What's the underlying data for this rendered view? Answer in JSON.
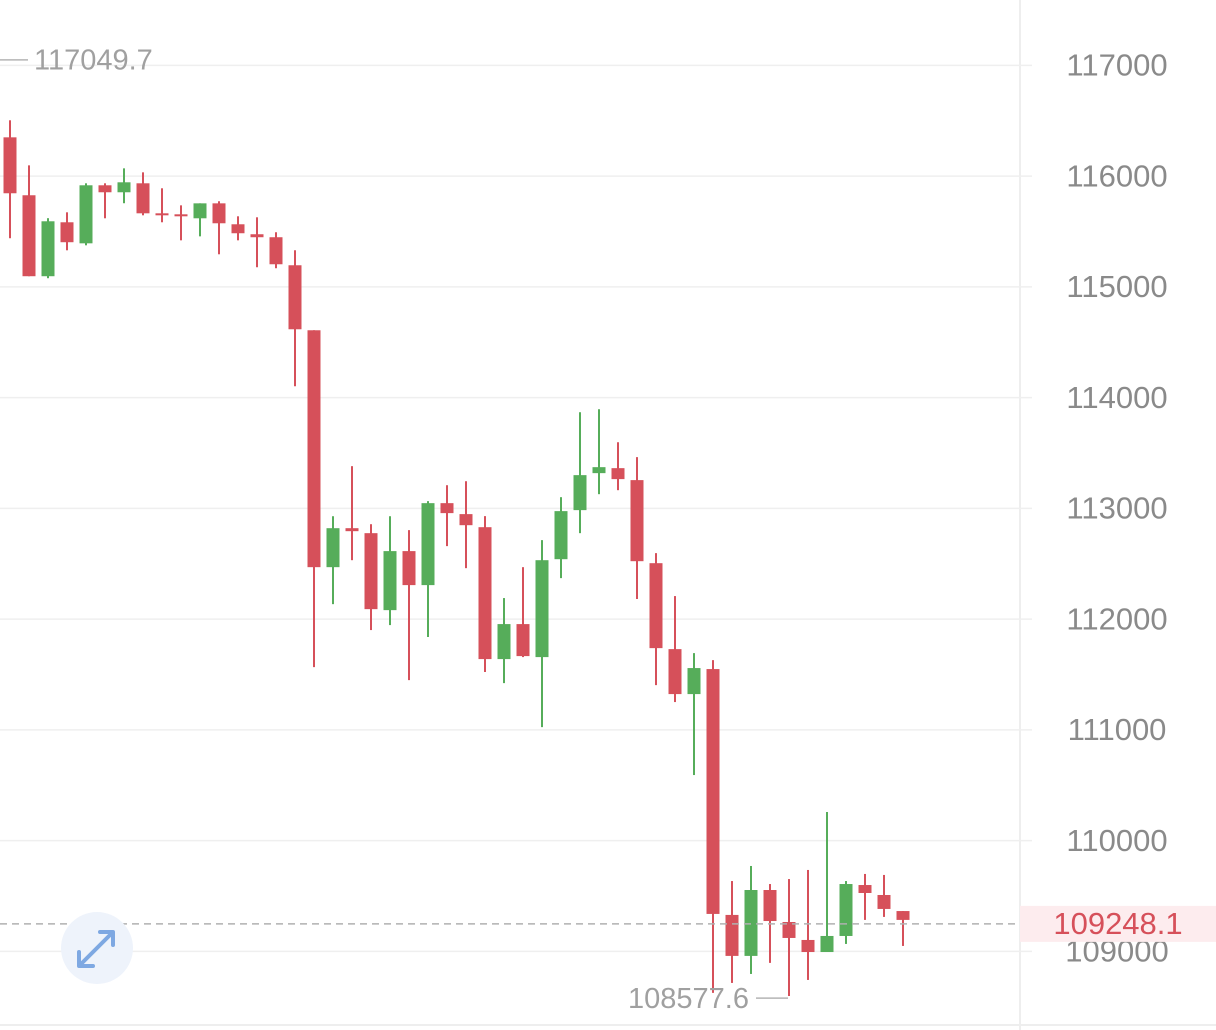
{
  "chart_data": {
    "type": "candlestick",
    "up_color": "#56ad5a",
    "down_color": "#d6505a",
    "ylim": [
      108290,
      117590
    ],
    "yticks": [
      109000,
      110000,
      111000,
      112000,
      113000,
      114000,
      115000,
      116000,
      117000
    ],
    "grid": true,
    "last_price": 109248.1,
    "max_label": 117049.7,
    "min_label": 108577.6,
    "series": {
      "open": [
        116350,
        115827,
        115096,
        115583,
        115393,
        115917,
        115854,
        115935,
        115664,
        115655,
        115619,
        115754,
        115565,
        115475,
        115448,
        115195,
        114608,
        112469,
        112821,
        112776,
        112081,
        112614,
        112307,
        113047,
        112948,
        112830,
        111639,
        111955,
        111657,
        112541,
        112984,
        113318,
        113363,
        113255,
        112505,
        111729,
        111323,
        111549,
        109329,
        108959,
        109554,
        109265,
        109103,
        108994,
        109139,
        109599,
        109509,
        109364
      ],
      "high": [
        116504,
        116097,
        115620,
        115673,
        115935,
        115935,
        116070,
        116034,
        115890,
        115736,
        115754,
        115773,
        115637,
        115628,
        115493,
        115330,
        114608,
        112929,
        113381,
        112857,
        112929,
        112803,
        113065,
        113209,
        113245,
        112930,
        112190,
        112469,
        112713,
        113101,
        113868,
        113895,
        113597,
        113462,
        112596,
        112208,
        111693,
        111630,
        109635,
        109771,
        109608,
        109653,
        109735,
        110258,
        109635,
        109699,
        109690,
        109364
      ],
      "low": [
        115439,
        115096,
        115078,
        115330,
        115375,
        115619,
        115755,
        115646,
        115583,
        115420,
        115456,
        115294,
        115420,
        115177,
        115168,
        114103,
        111567,
        112135,
        112532,
        111901,
        111946,
        111449,
        111838,
        112659,
        112460,
        111522,
        111422,
        111657,
        111025,
        112370,
        112776,
        113128,
        113164,
        112181,
        111404,
        111251,
        110592,
        108625,
        108715,
        108796,
        108896,
        108597,
        108742,
        108994,
        109067,
        109284,
        109311,
        109049
      ],
      "close": [
        115845,
        115096,
        115592,
        115403,
        115917,
        115854,
        115944,
        115664,
        115646,
        115637,
        115754,
        115574,
        115484,
        115448,
        115204,
        114617,
        112469,
        112821,
        112794,
        112090,
        112614,
        112307,
        113047,
        112957,
        112848,
        111639,
        111955,
        111666,
        112532,
        112975,
        113300,
        113372,
        113264,
        112523,
        111738,
        111323,
        111558,
        109338,
        108959,
        109554,
        109274,
        109121,
        108994,
        109139,
        109608,
        109527,
        109383,
        109284
      ]
    }
  }
}
